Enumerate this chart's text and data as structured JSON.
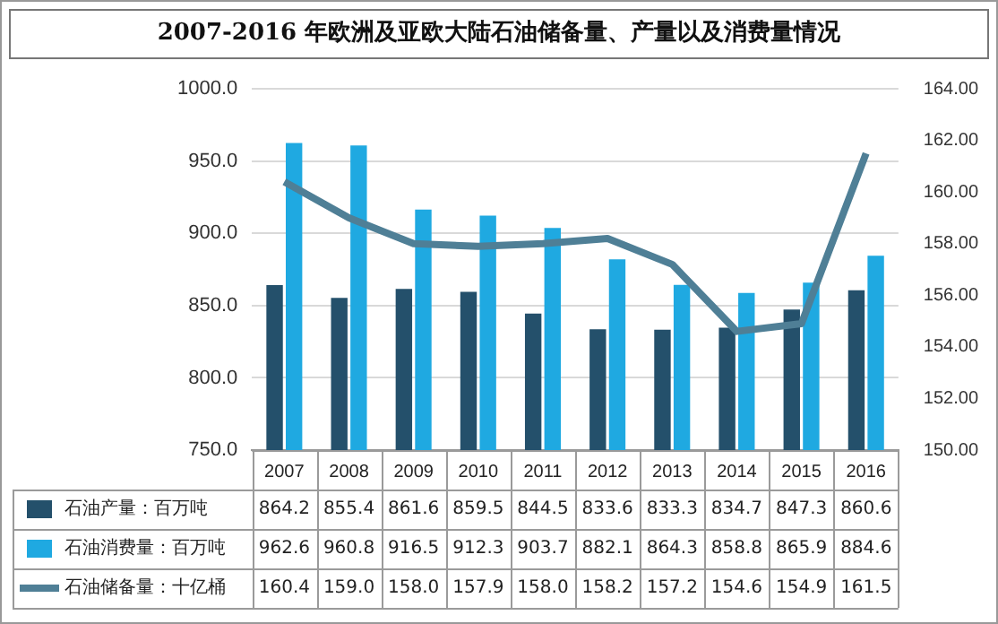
{
  "chart_data": {
    "type": "bar",
    "title": "2007-2016 年欧洲及亚欧大陆石油储备量、产量以及消费量情况",
    "categories": [
      "2007",
      "2008",
      "2009",
      "2010",
      "2011",
      "2012",
      "2013",
      "2014",
      "2015",
      "2016"
    ],
    "series": [
      {
        "name": "石油产量：百万吨",
        "color": "#24506b",
        "values": [
          864.2,
          855.4,
          861.6,
          859.5,
          844.5,
          833.6,
          833.3,
          834.7,
          847.3,
          860.6
        ],
        "value_labels": [
          "864.2",
          "855.4",
          "861.6",
          "859.5",
          "844.5",
          "833.6",
          "833.3",
          "834.7",
          "847.3",
          "860.6"
        ]
      },
      {
        "name": "石油消费量：百万吨",
        "color": "#1fa9e1",
        "values": [
          962.6,
          960.8,
          916.5,
          912.3,
          903.7,
          882.1,
          864.3,
          858.8,
          865.9,
          884.6
        ],
        "value_labels": [
          "962.6",
          "960.8",
          "916.5",
          "912.3",
          "903.7",
          "882.1",
          "864.3",
          "858.8",
          "865.9",
          "884.6"
        ]
      },
      {
        "name": "石油储备量：十亿桶",
        "type": "line",
        "axis": "y2",
        "color": "#4f7f96",
        "values": [
          160.4,
          159.0,
          158.0,
          157.9,
          158.0,
          158.2,
          157.2,
          154.6,
          154.9,
          161.5
        ],
        "value_labels": [
          "160.4",
          "159.0",
          "158.0",
          "157.9",
          "158.0",
          "158.2",
          "157.2",
          "154.6",
          "154.9",
          "161.5"
        ]
      }
    ],
    "ylim": [
      750,
      1000
    ],
    "yticks": [
      {
        "value": 750,
        "label": "750.0"
      },
      {
        "value": 800,
        "label": "800.0"
      },
      {
        "value": 850,
        "label": "850.0"
      },
      {
        "value": 900,
        "label": "900.0"
      },
      {
        "value": 950,
        "label": "950.0"
      },
      {
        "value": 1000,
        "label": "1000.0"
      }
    ],
    "y2lim": [
      150,
      164
    ],
    "y2ticks": [
      {
        "value": 150,
        "label": "150.00"
      },
      {
        "value": 152,
        "label": "152.00"
      },
      {
        "value": 154,
        "label": "154.00"
      },
      {
        "value": 156,
        "label": "156.00"
      },
      {
        "value": 158,
        "label": "158.00"
      },
      {
        "value": 160,
        "label": "160.00"
      },
      {
        "value": 162,
        "label": "162.00"
      },
      {
        "value": 164,
        "label": "164.00"
      }
    ],
    "grid": "y",
    "legend": "bottom",
    "marker": "none"
  }
}
